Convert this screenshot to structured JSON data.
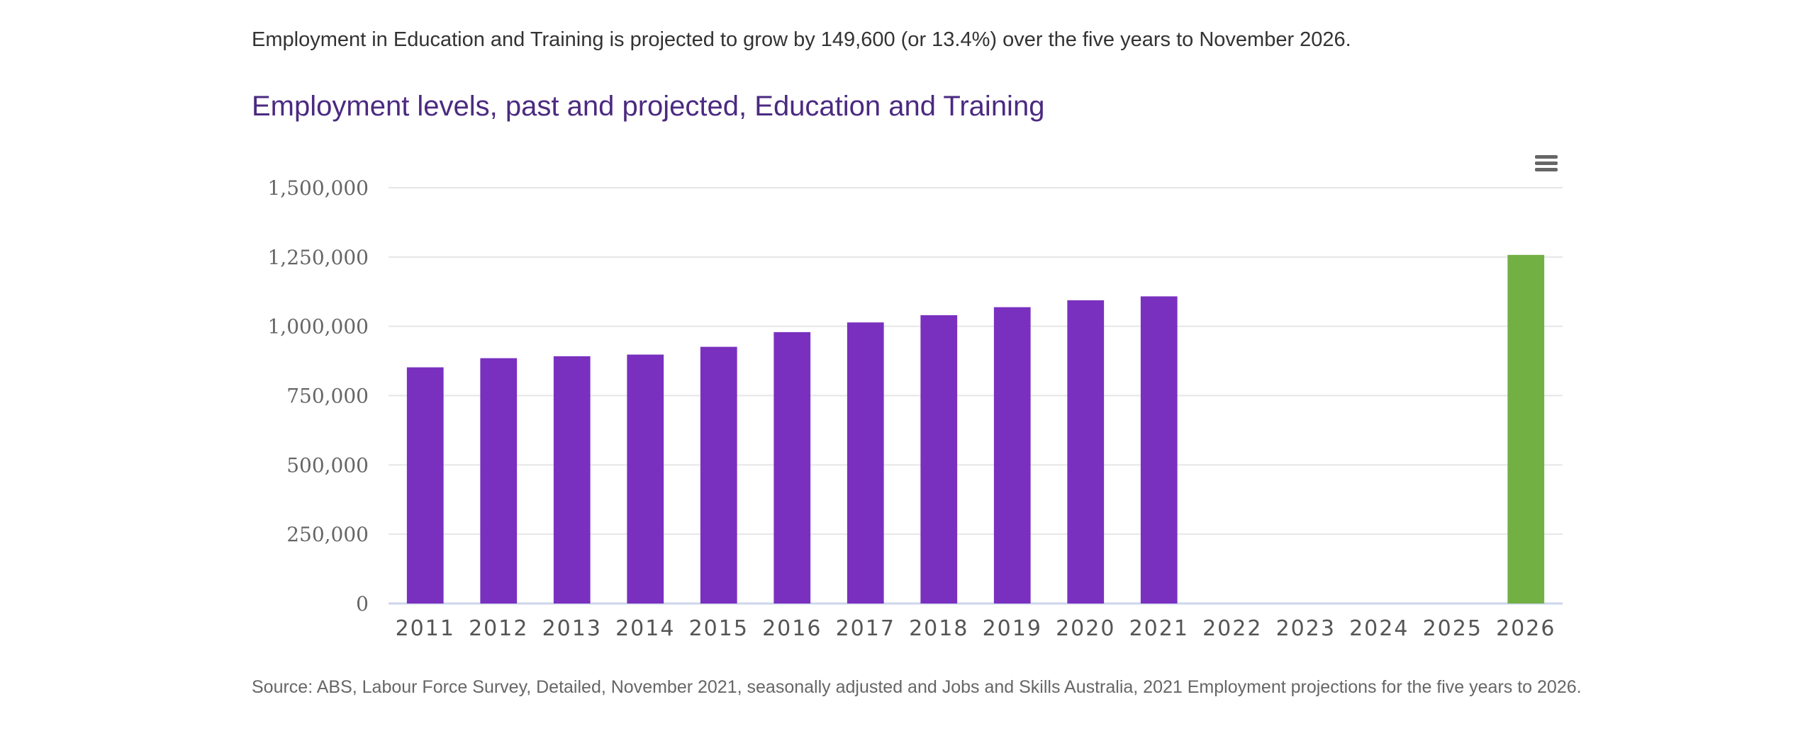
{
  "intro_text": "Employment in Education and Training is projected to grow by 149,600 (or 13.4%) over the five years to November 2026.",
  "source_text": "Source: ABS, Labour Force Survey, Detailed, November 2021, seasonally adjusted and Jobs and Skills Australia, 2021 Employment projections for the five years to 2026.",
  "menu_icon": "hamburger-menu-icon",
  "colors": {
    "historical": "#7930bf",
    "projected": "#72b043",
    "title": "#4b2a80",
    "grid": "#e6e6e6",
    "axis": "#ccd6eb"
  },
  "chart_data": {
    "type": "bar",
    "title": "Employment levels, past and projected, Education and Training",
    "xlabel": "",
    "ylabel": "",
    "ylim": [
      0,
      1500000
    ],
    "yticks": [
      0,
      250000,
      500000,
      750000,
      1000000,
      1250000,
      1500000
    ],
    "ytick_labels": [
      "0",
      "250,000",
      "500,000",
      "750,000",
      "1,000,000",
      "1,250,000",
      "1,500,000"
    ],
    "grid": true,
    "categories": [
      "2011",
      "2012",
      "2013",
      "2014",
      "2015",
      "2016",
      "2017",
      "2018",
      "2019",
      "2020",
      "2021",
      "2022",
      "2023",
      "2024",
      "2025",
      "2026"
    ],
    "values": [
      852000,
      885000,
      892000,
      898000,
      926000,
      979000,
      1014000,
      1040000,
      1069000,
      1094000,
      1108000,
      null,
      null,
      null,
      null,
      1257600
    ],
    "bar_types": [
      "historical",
      "historical",
      "historical",
      "historical",
      "historical",
      "historical",
      "historical",
      "historical",
      "historical",
      "historical",
      "historical",
      null,
      null,
      null,
      null,
      "projected"
    ]
  }
}
